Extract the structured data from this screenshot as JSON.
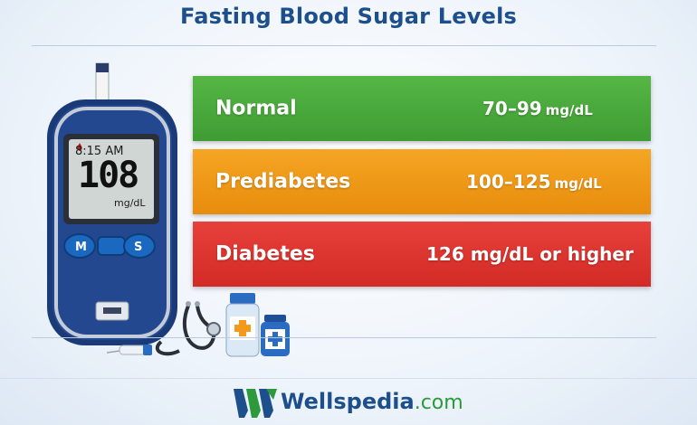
{
  "title": "Fasting Blood Sugar Levels",
  "meter": {
    "time": "8:15 AM",
    "reading": "108",
    "unit": "mg/dL",
    "button_left": "M",
    "button_right": "S"
  },
  "categories": [
    {
      "label": "Normal",
      "range": "70–99",
      "unit": "mg/dL",
      "color": "#4aab3d"
    },
    {
      "label": "Prediabetes",
      "range": "100–125",
      "unit": "mg/dL",
      "color": "#f09a18"
    },
    {
      "label": "Diabetes",
      "range": "126 mg/dL or higher",
      "unit": "",
      "color": "#de352f"
    }
  ],
  "brand": {
    "name": "Wellspedia",
    "tld": ".com",
    "color": "#1c4f8c",
    "accent": "#2c9a3a"
  }
}
